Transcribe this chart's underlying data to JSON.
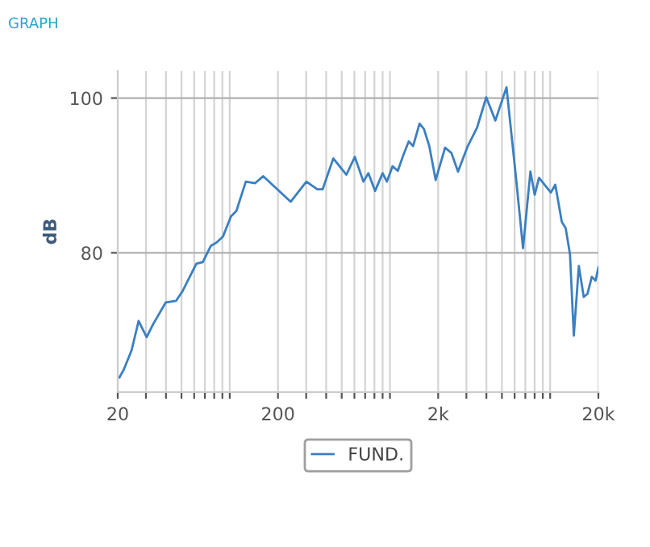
{
  "chart_data": {
    "type": "line",
    "title": "GRAPH",
    "ylabel": "dB",
    "x": [
      20.5,
      21.8,
      24.4,
      27.0,
      30.3,
      33.3,
      39.9,
      46.3,
      50.6,
      61.9,
      67.9,
      76.2,
      82.3,
      90.7,
      101.8,
      110,
      126,
      144,
      162,
      240,
      301,
      352,
      380,
      443,
      535,
      604,
      683,
      733,
      808,
      900,
      957,
      1038,
      1120,
      1211,
      1310,
      1395,
      1530,
      1630,
      1760,
      1930,
      2210,
      2420,
      2660,
      3060,
      3500,
      3990,
      4550,
      5340,
      6130,
      6770,
      7530,
      8010,
      8520,
      10100,
      10770,
      11820,
      12500,
      13300,
      14050,
      15100,
      16200,
      17100,
      18200,
      19200,
      20000
    ],
    "series": [
      {
        "name": "FUND.",
        "color": "#3a7fc1",
        "values": [
          63.9,
          64.9,
          67.4,
          71.2,
          69.1,
          70.8,
          73.6,
          73.8,
          75.0,
          78.6,
          78.8,
          80.9,
          81.3,
          82.1,
          84.7,
          85.4,
          89.2,
          89.0,
          89.9,
          86.6,
          89.2,
          88.2,
          88.2,
          92.2,
          90.1,
          92.4,
          89.2,
          90.3,
          88.0,
          90.3,
          89.2,
          91.2,
          90.6,
          92.6,
          94.4,
          93.8,
          96.7,
          96.0,
          93.8,
          89.4,
          93.6,
          92.9,
          90.5,
          93.8,
          96.2,
          100.1,
          97.1,
          101.4,
          89.6,
          80.6,
          90.5,
          87.5,
          89.7,
          87.8,
          88.8,
          84.0,
          83.2,
          79.8,
          69.3,
          78.3,
          74.3,
          74.7,
          76.9,
          76.4,
          78.1
        ]
      }
    ],
    "log": "x",
    "xlim": [
      20,
      20000
    ],
    "ylim": [
      62,
      103.5
    ],
    "xticks": [
      20,
      {
        "value": 30,
        "label": null
      },
      {
        "value": 40,
        "label": null
      },
      {
        "value": 50,
        "label": null
      },
      {
        "value": 60,
        "label": null
      },
      {
        "value": 70,
        "label": null
      },
      {
        "value": 80,
        "label": null
      },
      {
        "value": 90,
        "label": null
      },
      {
        "value": 100,
        "label": null
      },
      200,
      {
        "value": 300,
        "label": null
      },
      {
        "value": 400,
        "label": null
      },
      {
        "value": 500,
        "label": null
      },
      {
        "value": 600,
        "label": null
      },
      {
        "value": 700,
        "label": null
      },
      {
        "value": 800,
        "label": null
      },
      {
        "value": 900,
        "label": null
      },
      {
        "value": 1000,
        "label": null
      },
      {
        "value": 2000,
        "label": "2k"
      },
      {
        "value": 3000,
        "label": null
      },
      {
        "value": 4000,
        "label": null
      },
      {
        "value": 5000,
        "label": null
      },
      {
        "value": 6000,
        "label": null
      },
      {
        "value": 7000,
        "label": null
      },
      {
        "value": 8000,
        "label": null
      },
      {
        "value": 9000,
        "label": null
      },
      {
        "value": 10000,
        "label": null
      },
      {
        "value": 20000,
        "label": "20k"
      }
    ],
    "yticks": [
      80,
      100
    ],
    "grid": true,
    "legend": "bottom"
  }
}
